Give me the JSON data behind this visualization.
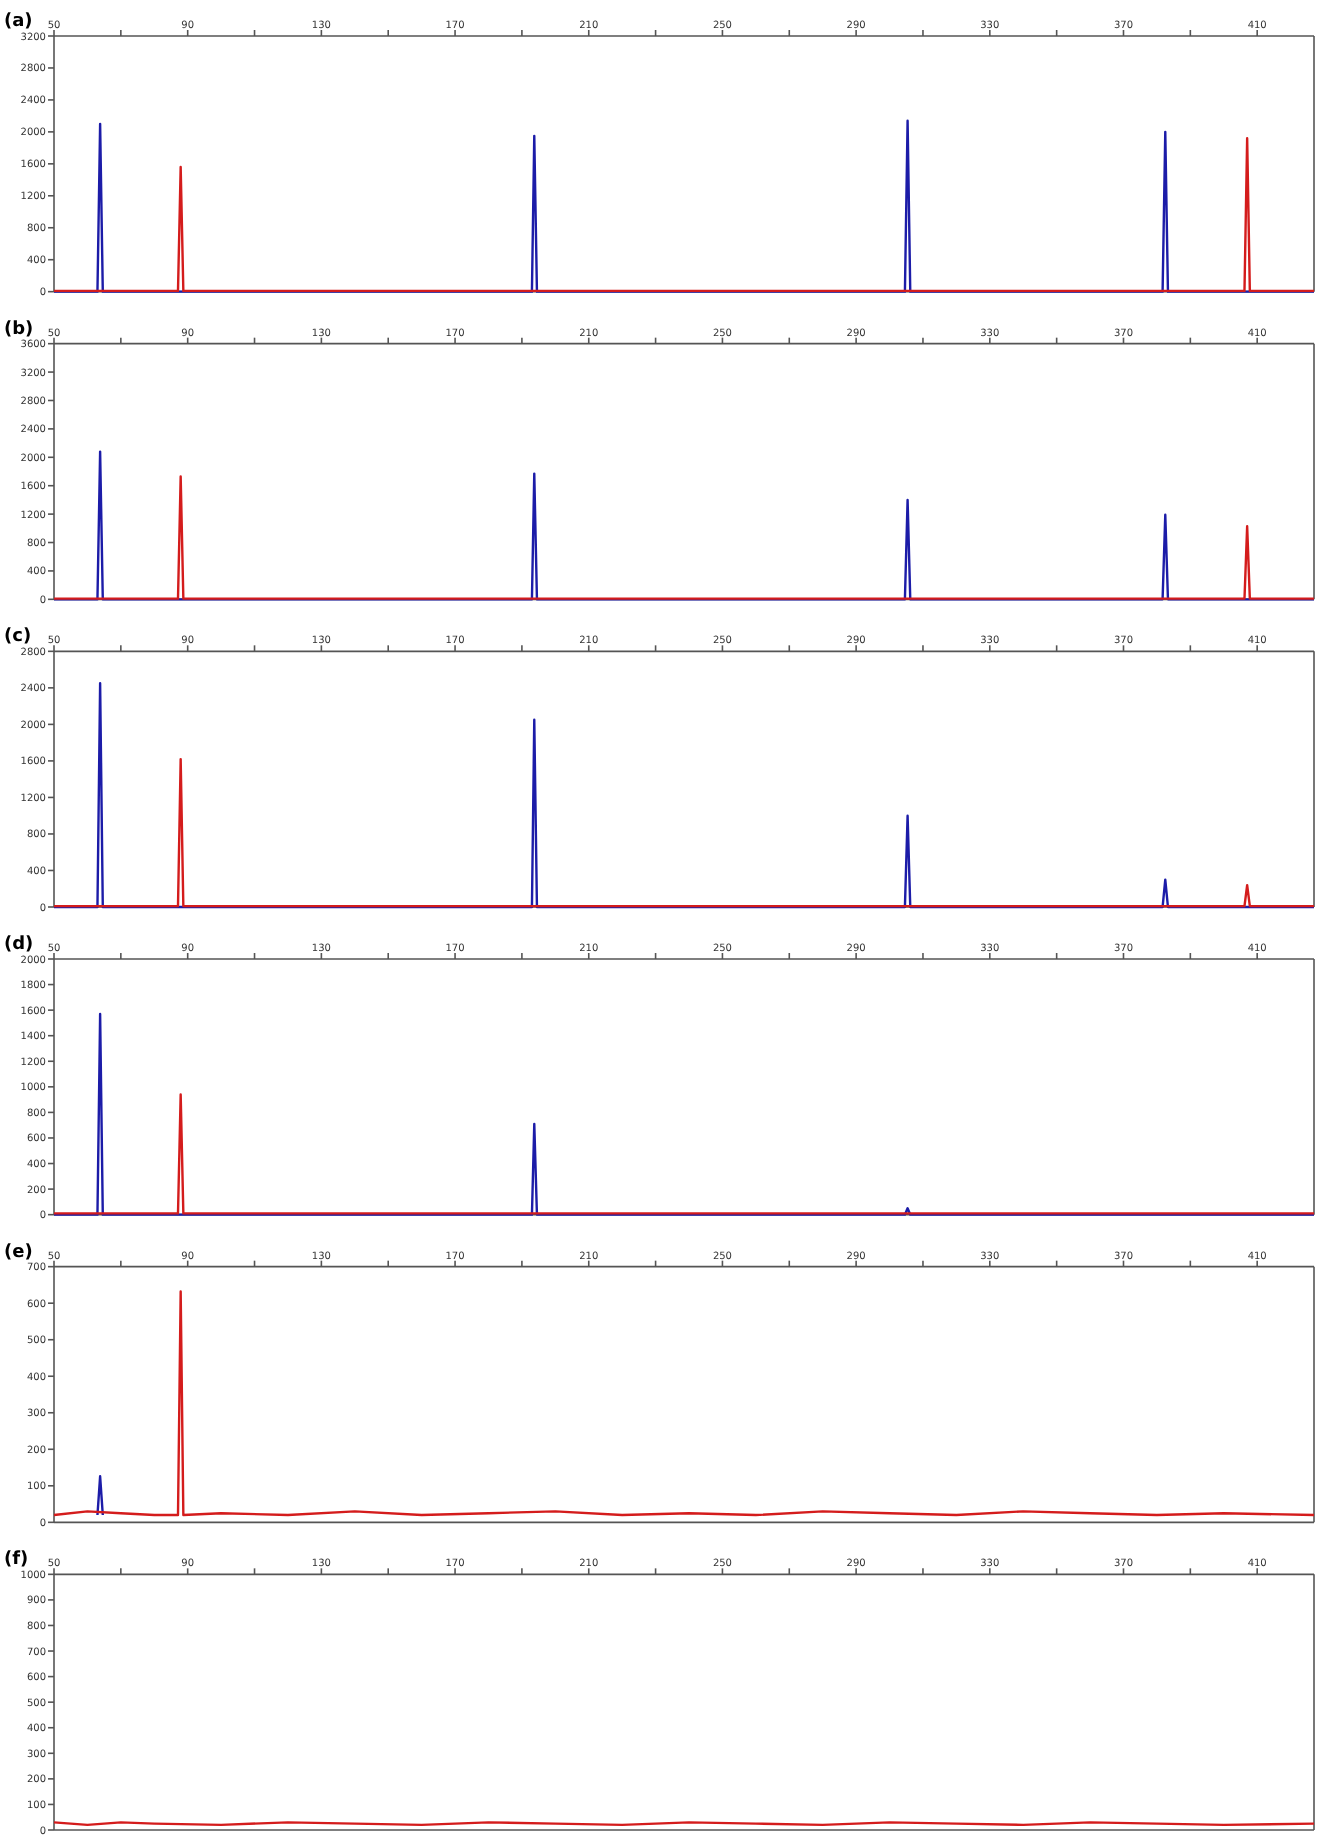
{
  "chart_data": [
    {
      "type": "line",
      "title": "(a)",
      "xlim": [
        50,
        427
      ],
      "xticks": [
        50,
        {
          "value": 70,
          "label": null
        },
        90,
        {
          "value": 110,
          "label": null
        },
        130,
        {
          "value": 150,
          "label": null
        },
        170,
        {
          "value": 190,
          "label": null
        },
        210,
        {
          "value": 230,
          "label": null
        },
        250,
        {
          "value": 270,
          "label": null
        },
        290,
        {
          "value": 310,
          "label": null
        },
        330,
        {
          "value": 350,
          "label": null
        },
        370,
        {
          "value": 390,
          "label": null
        },
        410
      ],
      "ylim": [
        0,
        3200
      ],
      "yticks": [
        0,
        400,
        800,
        1200,
        1600,
        2000,
        2400,
        2800,
        3200
      ],
      "series": [
        {
          "color": "#1c1ca8",
          "x": [
            50,
            63,
            63.8,
            64.6,
            193,
            193.7,
            194.5,
            304.6,
            305.4,
            306.2,
            381.7,
            382.5,
            383.3,
            427
          ],
          "values": [
            0,
            0,
            2100,
            0,
            0,
            1950,
            0,
            0,
            2140,
            0,
            0,
            2000,
            0,
            0
          ]
        },
        {
          "color": "#d41c1c",
          "x": [
            50,
            87.1,
            87.9,
            88.7,
            406.2,
            407,
            407.8,
            427
          ],
          "values": [
            10,
            10,
            1560,
            10,
            10,
            1920,
            10,
            10
          ]
        }
      ]
    },
    {
      "type": "line",
      "title": "(b)",
      "xlim": [
        50,
        427
      ],
      "xticks": [
        50,
        {
          "value": 70,
          "label": null
        },
        90,
        {
          "value": 110,
          "label": null
        },
        130,
        {
          "value": 150,
          "label": null
        },
        170,
        {
          "value": 190,
          "label": null
        },
        210,
        {
          "value": 230,
          "label": null
        },
        250,
        {
          "value": 270,
          "label": null
        },
        290,
        {
          "value": 310,
          "label": null
        },
        330,
        {
          "value": 350,
          "label": null
        },
        370,
        {
          "value": 390,
          "label": null
        },
        410
      ],
      "ylim": [
        0,
        3600
      ],
      "yticks": [
        0,
        400,
        800,
        1200,
        1600,
        2000,
        2400,
        2800,
        3200,
        3600
      ],
      "series": [
        {
          "color": "#1c1ca8",
          "x": [
            50,
            63,
            63.8,
            64.6,
            193,
            193.7,
            194.5,
            304.6,
            305.4,
            306.2,
            381.7,
            382.5,
            383.3,
            427
          ],
          "values": [
            0,
            0,
            2080,
            0,
            0,
            1770,
            0,
            0,
            1400,
            0,
            0,
            1190,
            0,
            0
          ]
        },
        {
          "color": "#d41c1c",
          "x": [
            50,
            87.1,
            87.9,
            88.7,
            406.2,
            407,
            407.8,
            427
          ],
          "values": [
            10,
            10,
            1730,
            10,
            10,
            1030,
            10,
            10
          ]
        }
      ]
    },
    {
      "type": "line",
      "title": "(c)",
      "xlim": [
        50,
        427
      ],
      "xticks": [
        50,
        {
          "value": 70,
          "label": null
        },
        90,
        {
          "value": 110,
          "label": null
        },
        130,
        {
          "value": 150,
          "label": null
        },
        170,
        {
          "value": 190,
          "label": null
        },
        210,
        {
          "value": 230,
          "label": null
        },
        250,
        {
          "value": 270,
          "label": null
        },
        290,
        {
          "value": 310,
          "label": null
        },
        330,
        {
          "value": 350,
          "label": null
        },
        370,
        {
          "value": 390,
          "label": null
        },
        410
      ],
      "ylim": [
        0,
        2800
      ],
      "yticks": [
        0,
        400,
        800,
        1200,
        1600,
        2000,
        2400,
        2800
      ],
      "series": [
        {
          "color": "#1c1ca8",
          "x": [
            50,
            63,
            63.8,
            64.6,
            193,
            193.7,
            194.5,
            304.6,
            305.4,
            306.2,
            381.7,
            382.5,
            383.3,
            427
          ],
          "values": [
            0,
            0,
            2450,
            0,
            0,
            2050,
            0,
            0,
            1000,
            0,
            0,
            300,
            0,
            0
          ]
        },
        {
          "color": "#d41c1c",
          "x": [
            50,
            87.1,
            87.9,
            88.7,
            406.2,
            407,
            407.8,
            427
          ],
          "values": [
            10,
            10,
            1620,
            10,
            10,
            240,
            10,
            10
          ]
        }
      ]
    },
    {
      "type": "line",
      "title": "(d)",
      "xlim": [
        50,
        427
      ],
      "xticks": [
        50,
        {
          "value": 70,
          "label": null
        },
        90,
        {
          "value": 110,
          "label": null
        },
        130,
        {
          "value": 150,
          "label": null
        },
        170,
        {
          "value": 190,
          "label": null
        },
        210,
        {
          "value": 230,
          "label": null
        },
        250,
        {
          "value": 270,
          "label": null
        },
        290,
        {
          "value": 310,
          "label": null
        },
        330,
        {
          "value": 350,
          "label": null
        },
        370,
        {
          "value": 390,
          "label": null
        },
        410
      ],
      "ylim": [
        0,
        2000
      ],
      "yticks": [
        0,
        200,
        400,
        600,
        800,
        1000,
        1200,
        1400,
        1600,
        1800,
        2000
      ],
      "series": [
        {
          "color": "#1c1ca8",
          "x": [
            50,
            63,
            63.8,
            64.6,
            193,
            193.7,
            194.5,
            304.6,
            305.4,
            306.2,
            427
          ],
          "values": [
            0,
            0,
            1570,
            0,
            0,
            710,
            0,
            0,
            50,
            0,
            0
          ]
        },
        {
          "color": "#d41c1c",
          "x": [
            50,
            87.1,
            87.9,
            88.7,
            427
          ],
          "values": [
            10,
            10,
            940,
            10,
            10
          ]
        }
      ]
    },
    {
      "type": "line",
      "title": "(e)",
      "xlim": [
        50,
        427
      ],
      "xticks": [
        50,
        {
          "value": 70,
          "label": null
        },
        90,
        {
          "value": 110,
          "label": null
        },
        130,
        {
          "value": 150,
          "label": null
        },
        170,
        {
          "value": 190,
          "label": null
        },
        210,
        {
          "value": 230,
          "label": null
        },
        250,
        {
          "value": 270,
          "label": null
        },
        290,
        {
          "value": 310,
          "label": null
        },
        330,
        {
          "value": 350,
          "label": null
        },
        370,
        {
          "value": 390,
          "label": null
        },
        410
      ],
      "ylim": [
        0,
        700
      ],
      "yticks": [
        0,
        100,
        200,
        300,
        400,
        500,
        600,
        700
      ],
      "series": [
        {
          "color": "#1c1ca8",
          "x": [
            63,
            63.8,
            64.6
          ],
          "values": [
            20,
            126,
            20
          ]
        },
        {
          "color": "#d41c1c",
          "x": [
            50,
            60,
            70,
            80,
            87.1,
            87.9,
            88.7,
            100,
            120,
            140,
            160,
            180,
            200,
            220,
            240,
            260,
            280,
            300,
            320,
            340,
            360,
            380,
            400,
            427
          ],
          "values": [
            20,
            30,
            25,
            20,
            20,
            632,
            20,
            25,
            20,
            30,
            20,
            25,
            30,
            20,
            25,
            20,
            30,
            25,
            20,
            30,
            25,
            20,
            25,
            20
          ]
        }
      ]
    },
    {
      "type": "line",
      "title": "(f)",
      "xlim": [
        50,
        427
      ],
      "xticks": [
        50,
        {
          "value": 70,
          "label": null
        },
        90,
        {
          "value": 110,
          "label": null
        },
        130,
        {
          "value": 150,
          "label": null
        },
        170,
        {
          "value": 190,
          "label": null
        },
        210,
        {
          "value": 230,
          "label": null
        },
        250,
        {
          "value": 270,
          "label": null
        },
        290,
        {
          "value": 310,
          "label": null
        },
        330,
        {
          "value": 350,
          "label": null
        },
        370,
        {
          "value": 390,
          "label": null
        },
        410
      ],
      "ylim": [
        0,
        1000
      ],
      "yticks": [
        0,
        100,
        200,
        300,
        400,
        500,
        600,
        700,
        800,
        900,
        1000
      ],
      "series": [
        {
          "color": "#d41c1c",
          "x": [
            50,
            60,
            70,
            80,
            100,
            120,
            140,
            160,
            180,
            200,
            220,
            240,
            260,
            280,
            300,
            320,
            340,
            360,
            380,
            400,
            427
          ],
          "values": [
            30,
            20,
            30,
            25,
            20,
            30,
            25,
            20,
            30,
            25,
            20,
            30,
            25,
            20,
            30,
            25,
            20,
            30,
            25,
            20,
            25
          ]
        }
      ]
    }
  ]
}
